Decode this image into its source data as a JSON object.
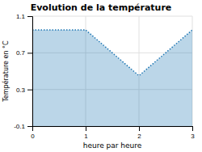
{
  "chart_data": {
    "type": "area",
    "title": "Evolution de la température",
    "x_label": "heure par heure",
    "y_label": "Température en °C",
    "x": [
      0,
      1,
      2,
      3
    ],
    "values": [
      0.95,
      0.95,
      0.45,
      0.95
    ],
    "xlim": [
      0,
      3
    ],
    "ylim": [
      -0.1,
      1.1
    ],
    "xticks": [
      0,
      1,
      2,
      3
    ],
    "yticks": [
      -0.1,
      0.3,
      0.7,
      1.1
    ],
    "grid": true,
    "line_style": "dotted"
  }
}
